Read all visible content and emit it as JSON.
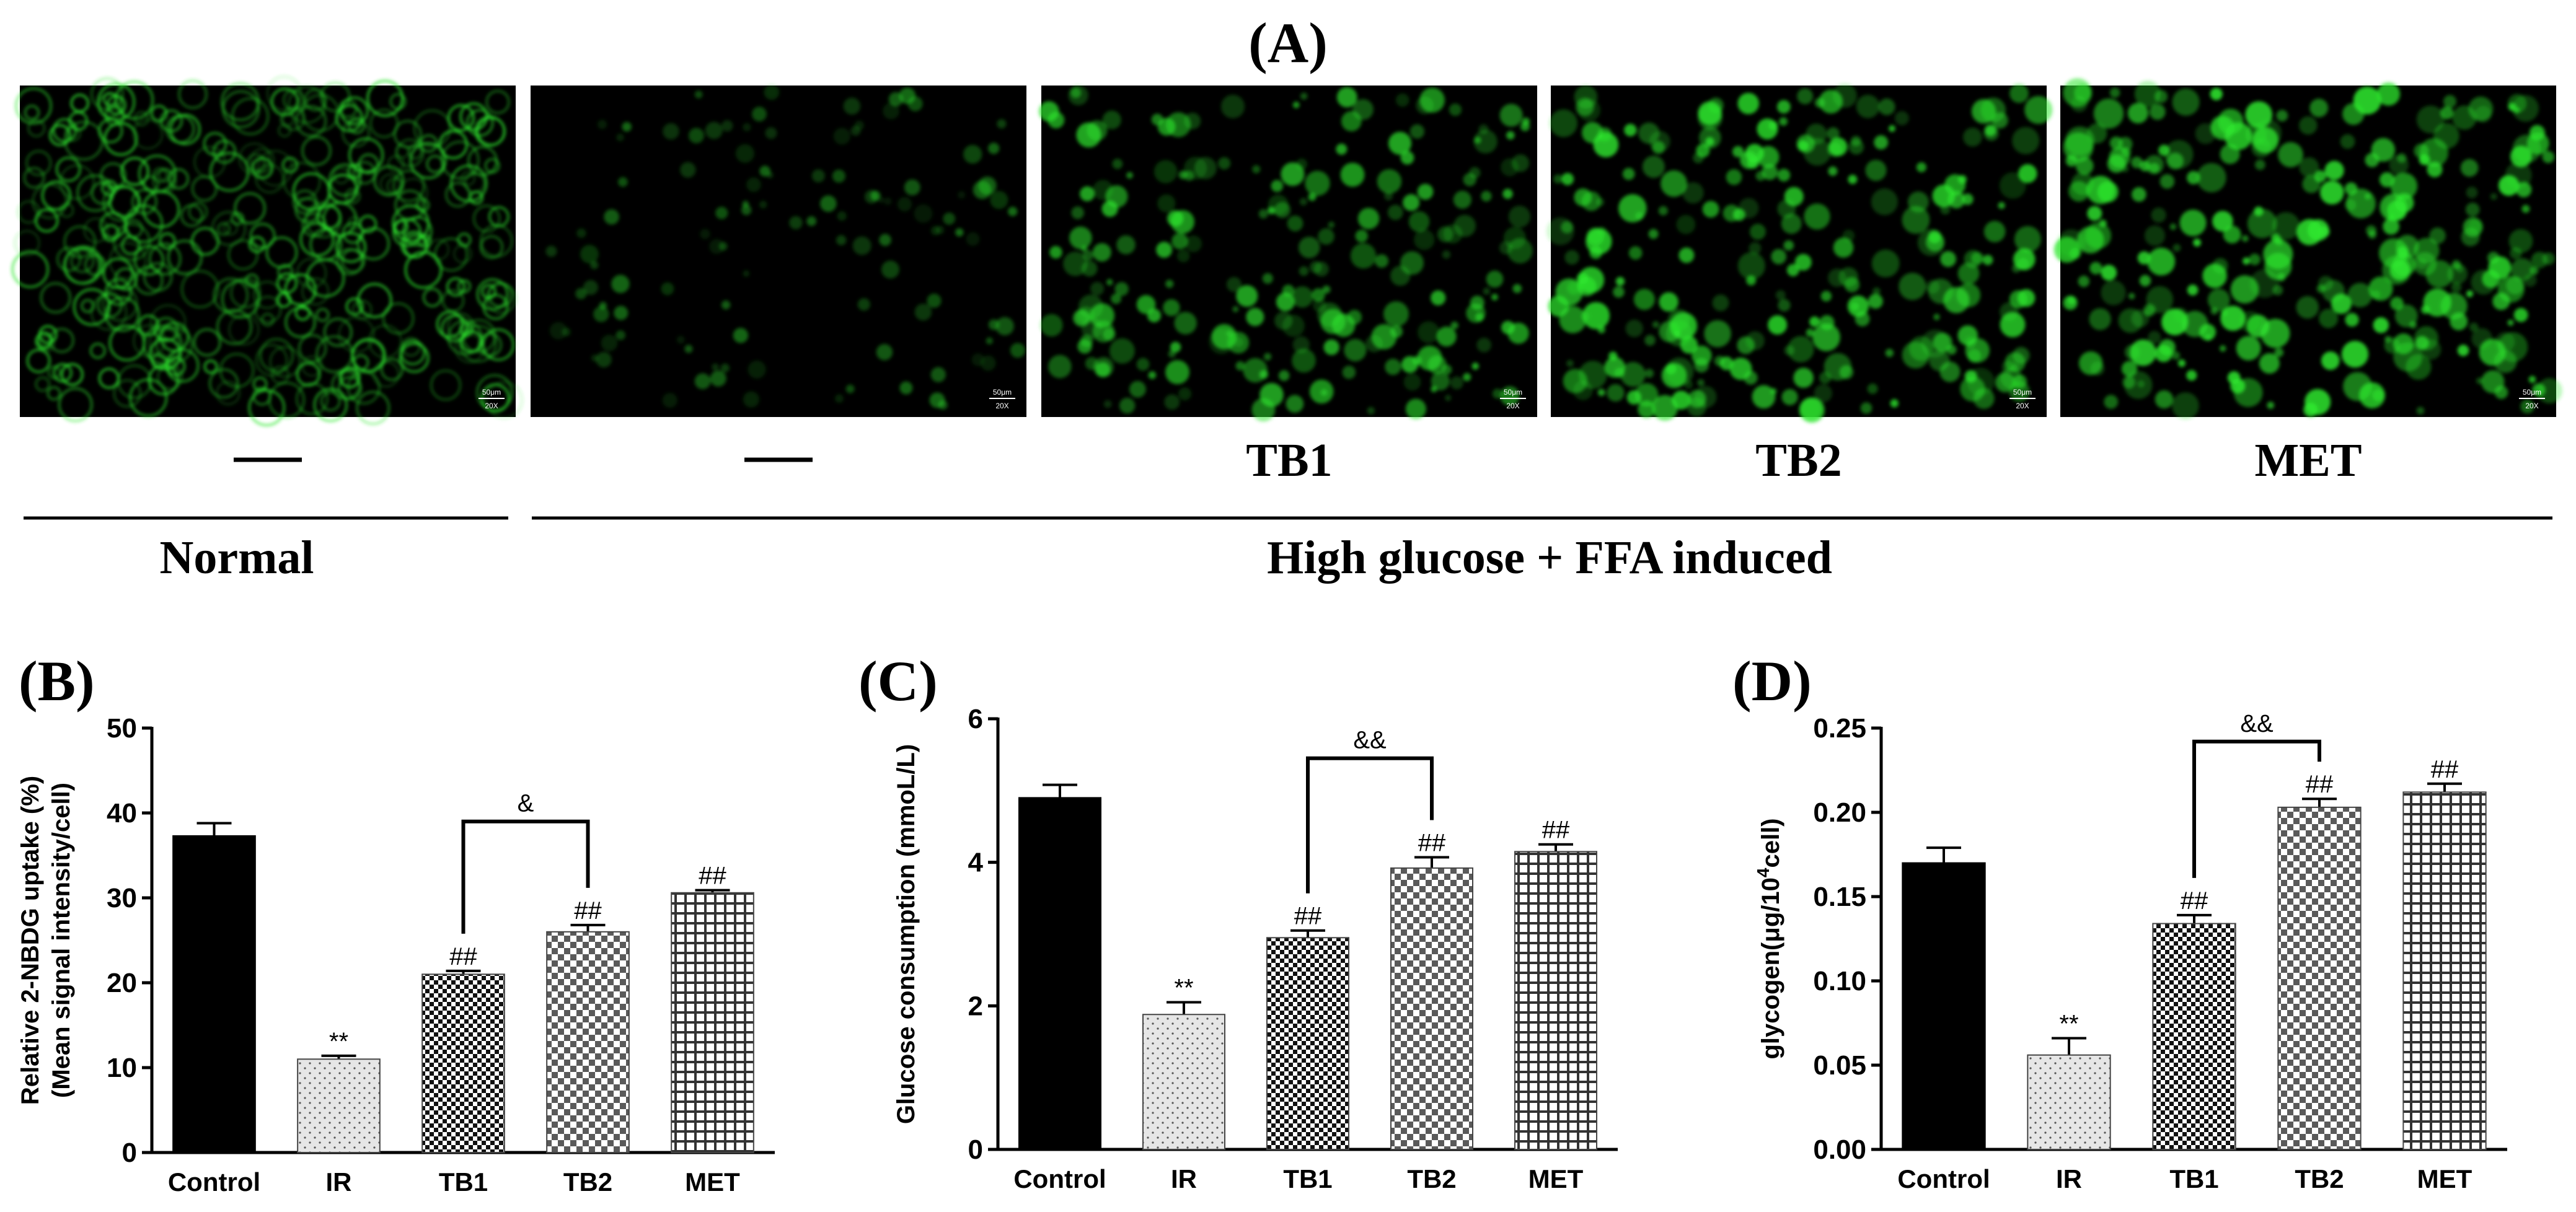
{
  "figure": {
    "panel_a_label": "(A)",
    "panel_b_label": "(B)",
    "panel_c_label": "(C)",
    "panel_d_label": "(D)",
    "normal_group_label": "Normal",
    "induced_group_label": "High glucose + FFA induced",
    "image_labels": [
      "",
      "",
      "TB1",
      "TB2",
      "MET"
    ],
    "scale_bar_text": "50μm",
    "magnification_text": "20X",
    "image_intensity": [
      0.95,
      0.15,
      0.55,
      0.7,
      0.8
    ],
    "image_color": "#2ee82e"
  },
  "colors": {
    "control": "#000000",
    "ir": "#d9d9d9",
    "tb1": "#3a3a3a",
    "tb2": "#9a9a9a",
    "met": "#6b6b6b"
  },
  "chart_data": [
    {
      "type": "bar",
      "panel": "B",
      "categories": [
        "Control",
        "IR",
        "TB1",
        "TB2",
        "MET"
      ],
      "values": [
        37.3,
        11.0,
        21.0,
        26.0,
        30.6
      ],
      "errors": [
        1.5,
        0.4,
        0.4,
        0.8,
        0.3
      ],
      "annotations": [
        "",
        "**",
        "##",
        "##",
        "##"
      ],
      "bracket": {
        "from": 2,
        "to": 3,
        "label": "&",
        "y": 39
      },
      "ylabel_lines": [
        "Relative 2-NBDG uptake  (%)",
        "(Mean signal intensity/cell)"
      ],
      "ylim": [
        0,
        50
      ],
      "yticks": [
        0,
        10,
        20,
        30,
        40,
        50
      ],
      "ytick_labels": [
        "0",
        "10",
        "20",
        "30",
        "40",
        "50"
      ]
    },
    {
      "type": "bar",
      "panel": "C",
      "categories": [
        "Control",
        "IR",
        "TB1",
        "TB2",
        "MET"
      ],
      "values": [
        4.9,
        1.88,
        2.95,
        3.92,
        4.15
      ],
      "errors": [
        0.18,
        0.17,
        0.1,
        0.15,
        0.1
      ],
      "annotations": [
        "",
        "**",
        "##",
        "##",
        "##"
      ],
      "bracket": {
        "from": 2,
        "to": 3,
        "label": "&&",
        "y": 5.45
      },
      "ylabel_lines": [
        "Glucose consumption (mmoL/L)"
      ],
      "ylim": [
        0,
        6
      ],
      "yticks": [
        0,
        2,
        4,
        6
      ],
      "ytick_labels": [
        "0",
        "2",
        "4",
        "6"
      ]
    },
    {
      "type": "bar",
      "panel": "D",
      "categories": [
        "Control",
        "IR",
        "TB1",
        "TB2",
        "MET"
      ],
      "values": [
        0.17,
        0.056,
        0.134,
        0.203,
        0.212
      ],
      "errors": [
        0.009,
        0.01,
        0.005,
        0.005,
        0.005
      ],
      "annotations": [
        "",
        "**",
        "##",
        "##",
        "##"
      ],
      "bracket": {
        "from": 2,
        "to": 3,
        "label": "&&",
        "y": 0.242
      },
      "ylabel_pre": "glycogen(μg/10",
      "ylabel_sup": "4",
      "ylabel_post": "cell)",
      "ylim": [
        0,
        0.25
      ],
      "yticks": [
        0,
        0.05,
        0.1,
        0.15,
        0.2,
        0.25
      ],
      "ytick_labels": [
        "0.00",
        "0.05",
        "0.10",
        "0.15",
        "0.20",
        "0.25"
      ]
    }
  ]
}
